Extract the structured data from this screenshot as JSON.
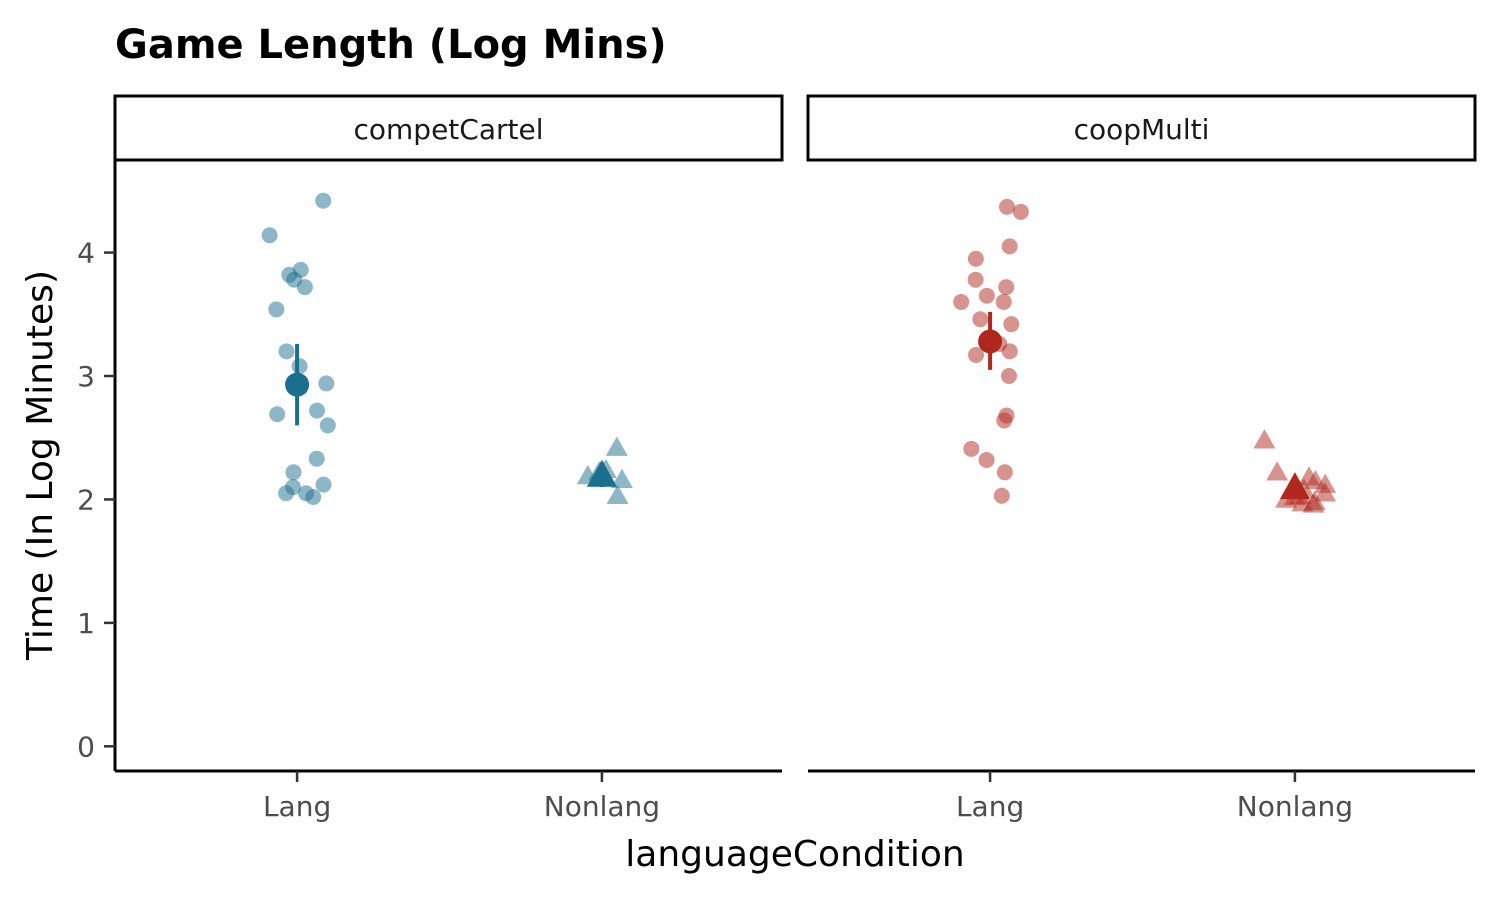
{
  "chart_data": {
    "type": "scatter",
    "title": "Game Length (Log Mins)",
    "xlabel": "languageCondition",
    "ylabel": "Time (In Log Minutes)",
    "ylim": [
      -0.2,
      4.75
    ],
    "yticks": [
      "0",
      "1",
      "2",
      "3",
      "4"
    ],
    "categories": [
      "Lang",
      "Nonlang"
    ],
    "colors": {
      "competCartel": "#1b6f8e",
      "coopMulti": "#b0281d"
    },
    "facets": [
      {
        "label": "competCartel",
        "color_key": "competCartel",
        "groups": [
          {
            "category": "Lang",
            "shape": "circle",
            "points": [
              4.42,
              4.14,
              3.86,
              3.82,
              3.78,
              3.72,
              3.54,
              3.2,
              3.08,
              2.94,
              2.72,
              2.69,
              2.6,
              2.33,
              2.22,
              2.12,
              2.1,
              2.05,
              2.05,
              2.02
            ],
            "mean": 2.93,
            "ci": [
              2.6,
              3.26
            ]
          },
          {
            "category": "Nonlang",
            "shape": "triangle",
            "points": [
              2.42,
              2.24,
              2.22,
              2.19,
              2.16,
              2.03
            ],
            "mean": 2.2,
            "ci": [
              2.1,
              2.3
            ]
          }
        ]
      },
      {
        "label": "coopMulti",
        "color_key": "coopMulti",
        "groups": [
          {
            "category": "Lang",
            "shape": "circle",
            "points": [
              4.37,
              4.33,
              4.05,
              3.95,
              3.78,
              3.72,
              3.65,
              3.6,
              3.6,
              3.46,
              3.42,
              3.26,
              3.2,
              3.17,
              3.0,
              2.68,
              2.64,
              2.41,
              2.32,
              2.22,
              2.03
            ],
            "mean": 3.28,
            "ci": [
              3.05,
              3.52
            ]
          },
          {
            "category": "Nonlang",
            "shape": "triangle",
            "points": [
              2.48,
              2.22,
              2.18,
              2.15,
              2.12,
              2.1,
              2.08,
              2.05,
              2.03,
              2.02,
              2.0,
              1.98,
              1.97,
              1.96
            ],
            "mean": 2.1,
            "ci": [
              2.03,
              2.17
            ]
          }
        ]
      }
    ]
  }
}
